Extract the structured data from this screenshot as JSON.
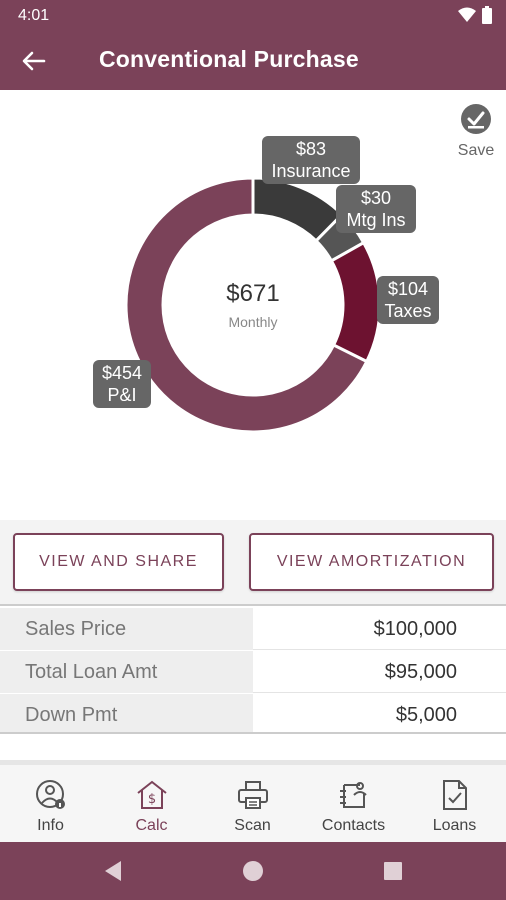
{
  "status": {
    "time": "4:01",
    "icons": [
      "wifi-icon",
      "battery-icon"
    ]
  },
  "app_bar": {
    "title": "Conventional Purchase",
    "back_icon": "arrow-left-icon"
  },
  "save": {
    "label": "Save",
    "icon": "check-circle-icon"
  },
  "chart_data": {
    "type": "pie",
    "center_value": "$671",
    "center_label": "Monthly",
    "slices": [
      {
        "amount": "$83",
        "label": "Insurance",
        "value": 83,
        "color": "#3a3a3a"
      },
      {
        "amount": "$30",
        "label": "Mtg Ins",
        "value": 30,
        "color": "#555555"
      },
      {
        "amount": "$104",
        "label": "Taxes",
        "value": 104,
        "color": "#6d1230"
      },
      {
        "amount": "$454",
        "label": "P&I",
        "value": 454,
        "color": "#7b4259"
      }
    ]
  },
  "buttons": {
    "share": "VIEW AND SHARE",
    "amortization": "VIEW AMORTIZATION"
  },
  "summary": [
    {
      "label": "Sales Price",
      "value": "$100,000"
    },
    {
      "label": "Total Loan Amt",
      "value": "$95,000"
    },
    {
      "label": "Down Pmt",
      "value": "$5,000"
    }
  ],
  "nav": [
    {
      "label": "Info",
      "icon": "user-info-icon",
      "active": false
    },
    {
      "label": "Calc",
      "icon": "house-dollar-icon",
      "active": true
    },
    {
      "label": "Scan",
      "icon": "printer-icon",
      "active": false
    },
    {
      "label": "Contacts",
      "icon": "contacts-icon",
      "active": false
    },
    {
      "label": "Loans",
      "icon": "document-check-icon",
      "active": false
    }
  ],
  "colors": {
    "brand": "#7b4259",
    "active_nav": "#7b4259"
  }
}
